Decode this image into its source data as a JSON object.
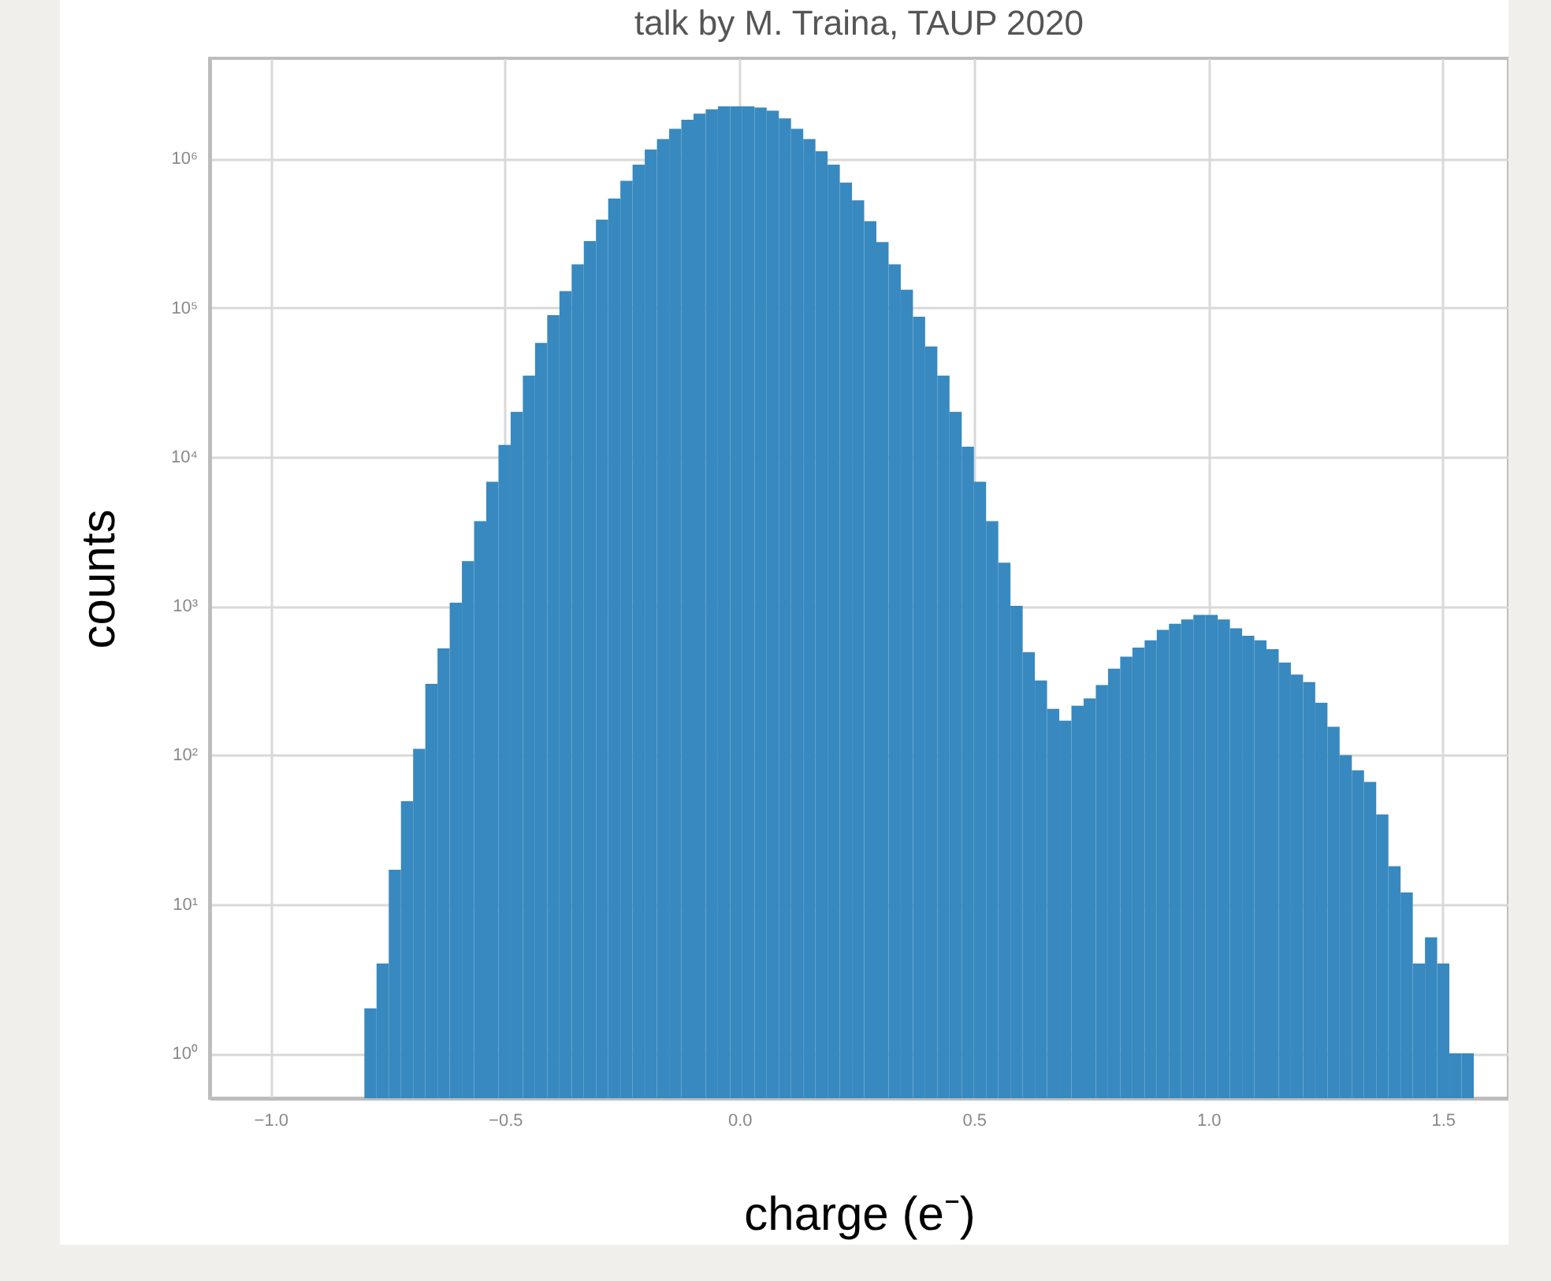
{
  "chart_data": {
    "type": "histogram",
    "annotations": [
      "talk by M. Traina, TAUP 2020"
    ],
    "xlabel": "charge (e⁻)",
    "ylabel": "counts",
    "color": "#3889bf",
    "log": "y",
    "grid": true,
    "bins": [
      -0.8,
      -0.774,
      -0.748,
      -0.722,
      -0.696,
      -0.67,
      -0.644,
      -0.618,
      -0.592,
      -0.566,
      -0.54,
      -0.514,
      -0.488,
      -0.462,
      -0.436,
      -0.41,
      -0.384,
      -0.358,
      -0.332,
      -0.306,
      -0.28,
      -0.254,
      -0.228,
      -0.202,
      -0.176,
      -0.15,
      -0.124,
      -0.098,
      -0.072,
      -0.046,
      -0.02,
      0.006,
      0.032,
      0.058,
      0.084,
      0.11,
      0.136,
      0.162,
      0.188,
      0.214,
      0.24,
      0.266,
      0.292,
      0.318,
      0.344,
      0.37,
      0.396,
      0.422,
      0.448,
      0.474,
      0.5,
      0.526,
      0.552,
      0.578,
      0.604,
      0.63,
      0.656,
      0.682,
      0.708,
      0.734,
      0.76,
      0.786,
      0.812,
      0.838,
      0.864,
      0.89,
      0.916,
      0.942,
      0.968,
      0.994,
      1.02,
      1.046,
      1.072,
      1.098,
      1.124,
      1.15,
      1.176,
      1.202,
      1.228,
      1.254,
      1.28,
      1.306,
      1.332,
      1.358,
      1.384,
      1.41,
      1.436,
      1.462,
      1.488,
      1.514,
      1.54,
      1.566
    ],
    "values": [
      2,
      4,
      17,
      49,
      110,
      300,
      520,
      1050,
      2000,
      3700,
      6800,
      12000,
      20000,
      35000,
      58000,
      89000,
      129000,
      195000,
      280000,
      390000,
      540000,
      710000,
      910000,
      1150000,
      1350000,
      1580000,
      1820000,
      2000000,
      2140000,
      2240000,
      2240000,
      2240000,
      2200000,
      2090000,
      1860000,
      1580000,
      1350000,
      1120000,
      910000,
      690000,
      525000,
      380000,
      275000,
      195000,
      132000,
      87000,
      55000,
      35000,
      20000,
      11700,
      6800,
      3700,
      1950,
      1000,
      490,
      316,
      204,
      170,
      214,
      240,
      295,
      380,
      457,
      525,
      589,
      692,
      759,
      813,
      871,
      871,
      813,
      708,
      631,
      589,
      513,
      417,
      347,
      309,
      224,
      155,
      100,
      79,
      66,
      40,
      18,
      12,
      4,
      6,
      4,
      1,
      1
    ],
    "xlim": [
      -1.13,
      1.64
    ],
    "ylim": [
      0.5,
      4700000
    ],
    "xticks": [
      {
        "value": -1,
        "label": "−1.0"
      },
      {
        "value": -0.5,
        "label": "−0.5"
      },
      {
        "value": 0,
        "label": "0.0"
      },
      {
        "value": 0.5,
        "label": "0.5"
      },
      {
        "value": 1,
        "label": "1.0"
      },
      {
        "value": 1.5,
        "label": "1.5"
      }
    ],
    "yticks": [
      {
        "value": 1,
        "label": "10⁰"
      },
      {
        "value": 10,
        "label": "10¹"
      },
      {
        "value": 100,
        "label": "10²"
      },
      {
        "value": 1000,
        "label": "10³"
      },
      {
        "value": 10000,
        "label": "10⁴"
      },
      {
        "value": 100000,
        "label": "10⁵"
      },
      {
        "value": 1000000,
        "label": "10⁶"
      }
    ]
  }
}
